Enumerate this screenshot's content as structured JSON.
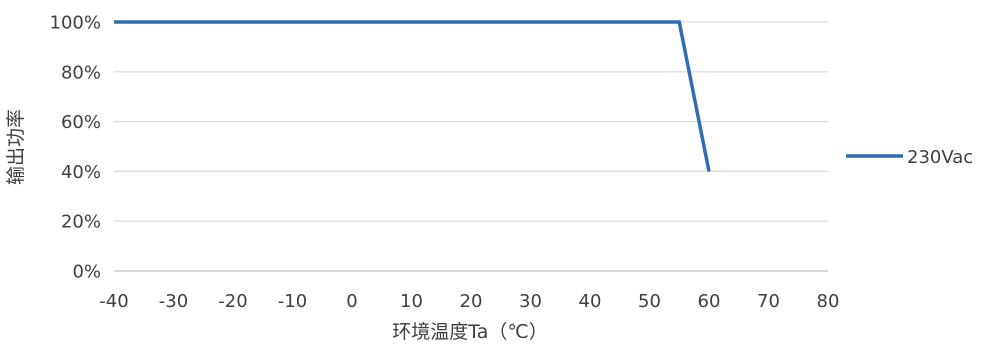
{
  "chart_data": {
    "type": "line",
    "title": "",
    "xlabel": "环境温度Ta（℃）",
    "ylabel": "输出功率",
    "x_ticks": [
      "-40",
      "-30",
      "-20",
      "-10",
      "0",
      "10",
      "20",
      "30",
      "40",
      "50",
      "60",
      "70",
      "80"
    ],
    "y_ticks": [
      "0%",
      "20%",
      "40%",
      "60%",
      "80%",
      "100%"
    ],
    "xlim": [
      -40,
      80
    ],
    "ylim": [
      0,
      100
    ],
    "grid": "horizontal",
    "legend_position": "right",
    "series": [
      {
        "name": "230Vac",
        "color": "#2E6DB4",
        "points": [
          {
            "x": -40,
            "y": 100
          },
          {
            "x": 55,
            "y": 100
          },
          {
            "x": 60,
            "y": 40
          }
        ]
      }
    ]
  }
}
